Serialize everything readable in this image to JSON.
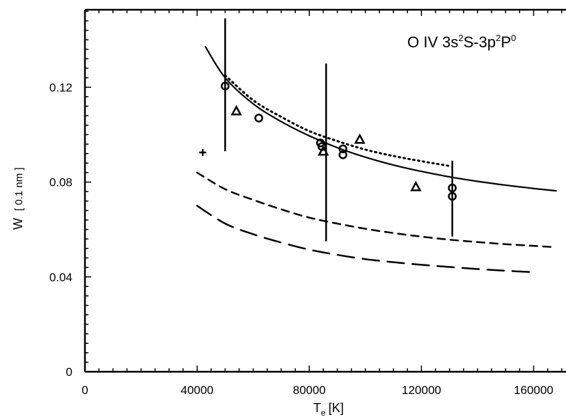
{
  "chart_data": {
    "type": "scatter",
    "title": "",
    "annotation": {
      "prefix": "O IV 3s",
      "sup1": "2",
      "mid": "S-3p",
      "sup2": "2",
      "suffix": "P",
      "sup3": "0"
    },
    "xlabel": {
      "main": "T",
      "sub": "e",
      "unit": "[K]"
    },
    "ylabel": {
      "main": "W",
      "unit": "[ 0.1 nm ]"
    },
    "xlim": [
      0,
      170000
    ],
    "ylim": [
      0,
      0.15
    ],
    "x_ticks": [
      0,
      40000,
      80000,
      120000,
      160000
    ],
    "x_tick_labels": [
      "0",
      "40000",
      "80000",
      "120000",
      "160000"
    ],
    "y_ticks": [
      0,
      0.04,
      0.08,
      0.12
    ],
    "y_tick_labels": [
      "0",
      "0.04",
      "0.08",
      "0.12"
    ],
    "grid": false,
    "series": [
      {
        "style": "solid",
        "x": [
          43000,
          50000,
          60000,
          70000,
          80000,
          90000,
          100000,
          110000,
          120000,
          130000,
          140000,
          150000,
          160000,
          168000
        ],
        "y": [
          0.137,
          0.124,
          0.113,
          0.1055,
          0.0995,
          0.0945,
          0.0905,
          0.0872,
          0.0845,
          0.0822,
          0.0803,
          0.0787,
          0.0773,
          0.0763
        ]
      },
      {
        "style": "dotted",
        "x": [
          50000,
          60000,
          70000,
          80000,
          90000,
          100000,
          110000,
          120000,
          130000
        ],
        "y": [
          0.125,
          0.1145,
          0.1075,
          0.1015,
          0.0973,
          0.0937,
          0.091,
          0.0888,
          0.0868
        ]
      },
      {
        "style": "dashed",
        "x": [
          40000,
          50000,
          60000,
          70000,
          80000,
          90000,
          100000,
          110000,
          120000,
          130000,
          140000,
          150000,
          160000,
          168000
        ],
        "y": [
          0.084,
          0.077,
          0.0725,
          0.0685,
          0.065,
          0.0625,
          0.0603,
          0.0585,
          0.057,
          0.0557,
          0.0547,
          0.0538,
          0.0531,
          0.0525
        ]
      },
      {
        "style": "longdash",
        "x": [
          40000,
          50000,
          60000,
          70000,
          80000,
          90000,
          100000,
          110000,
          120000,
          130000,
          140000,
          150000,
          160000
        ],
        "y": [
          0.07,
          0.0625,
          0.058,
          0.0545,
          0.0515,
          0.0493,
          0.0475,
          0.0462,
          0.0451,
          0.0442,
          0.0433,
          0.0426,
          0.042
        ]
      }
    ],
    "points": [
      {
        "marker": "circle",
        "x": 50000,
        "y": 0.1205
      },
      {
        "marker": "circle",
        "x": 62000,
        "y": 0.107
      },
      {
        "marker": "circle",
        "x": 84000,
        "y": 0.0965
      },
      {
        "marker": "circle",
        "x": 84500,
        "y": 0.095
      },
      {
        "marker": "circle",
        "x": 92000,
        "y": 0.094
      },
      {
        "marker": "circle",
        "x": 92000,
        "y": 0.0915
      },
      {
        "marker": "circle",
        "x": 131000,
        "y": 0.0775
      },
      {
        "marker": "circle",
        "x": 131000,
        "y": 0.074
      },
      {
        "marker": "triangle",
        "x": 54000,
        "y": 0.11
      },
      {
        "marker": "triangle",
        "x": 85000,
        "y": 0.093
      },
      {
        "marker": "triangle",
        "x": 98000,
        "y": 0.098
      },
      {
        "marker": "triangle",
        "x": 118000,
        "y": 0.078
      },
      {
        "marker": "plus",
        "x": 42000,
        "y": 0.0925
      }
    ],
    "error_bars": [
      {
        "x": 50000,
        "y_low": 0.093,
        "y_high": 0.149
      },
      {
        "x": 86000,
        "y_low": 0.055,
        "y_high": 0.13
      },
      {
        "x": 131000,
        "y_low": 0.057,
        "y_high": 0.089
      }
    ]
  }
}
